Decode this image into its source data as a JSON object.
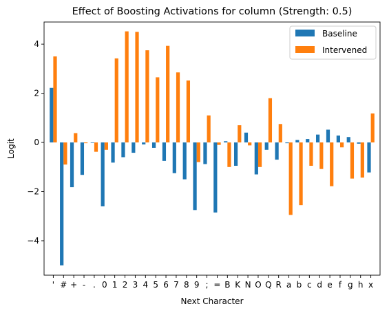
{
  "chart_data": {
    "type": "bar",
    "title": "Effect of Boosting Activations for column (Strength: 0.5)",
    "xlabel": "Next Character",
    "ylabel": "Logit",
    "ylim": [
      -5.4,
      4.9
    ],
    "yticks": [
      -4,
      -2,
      0,
      2,
      4
    ],
    "grid": false,
    "legend_position": "top-right",
    "categories": [
      "'",
      "#",
      "+",
      "-",
      ".",
      "0",
      "1",
      "2",
      "3",
      "4",
      "5",
      "6",
      "7",
      "8",
      "9",
      ";",
      "=",
      "B",
      "K",
      "N",
      "O",
      "Q",
      "R",
      "a",
      "b",
      "c",
      "d",
      "e",
      "f",
      "g",
      "h",
      "x"
    ],
    "series": [
      {
        "name": "Baseline",
        "color": "#1f77b4",
        "values": [
          2.22,
          -5.0,
          -1.82,
          -1.32,
          -0.02,
          -2.6,
          -0.82,
          -0.6,
          -0.42,
          -0.08,
          -0.22,
          -0.75,
          -1.25,
          -1.5,
          -2.75,
          -0.88,
          -2.85,
          0.05,
          -0.95,
          0.4,
          -1.3,
          -0.3,
          -0.7,
          -0.03,
          0.1,
          0.14,
          0.32,
          0.52,
          0.28,
          0.22,
          -0.05,
          -1.22
        ]
      },
      {
        "name": "Intervened",
        "color": "#ff7f0e",
        "values": [
          3.5,
          -0.9,
          0.38,
          -0.03,
          -0.38,
          -0.3,
          3.42,
          4.52,
          4.5,
          3.75,
          2.65,
          3.93,
          2.85,
          2.52,
          -0.8,
          1.1,
          -0.1,
          -1.0,
          0.7,
          -0.12,
          -1.0,
          1.8,
          0.75,
          -2.95,
          -2.55,
          -0.95,
          -1.08,
          -1.78,
          -0.2,
          -1.47,
          -1.43,
          1.18
        ]
      }
    ]
  }
}
